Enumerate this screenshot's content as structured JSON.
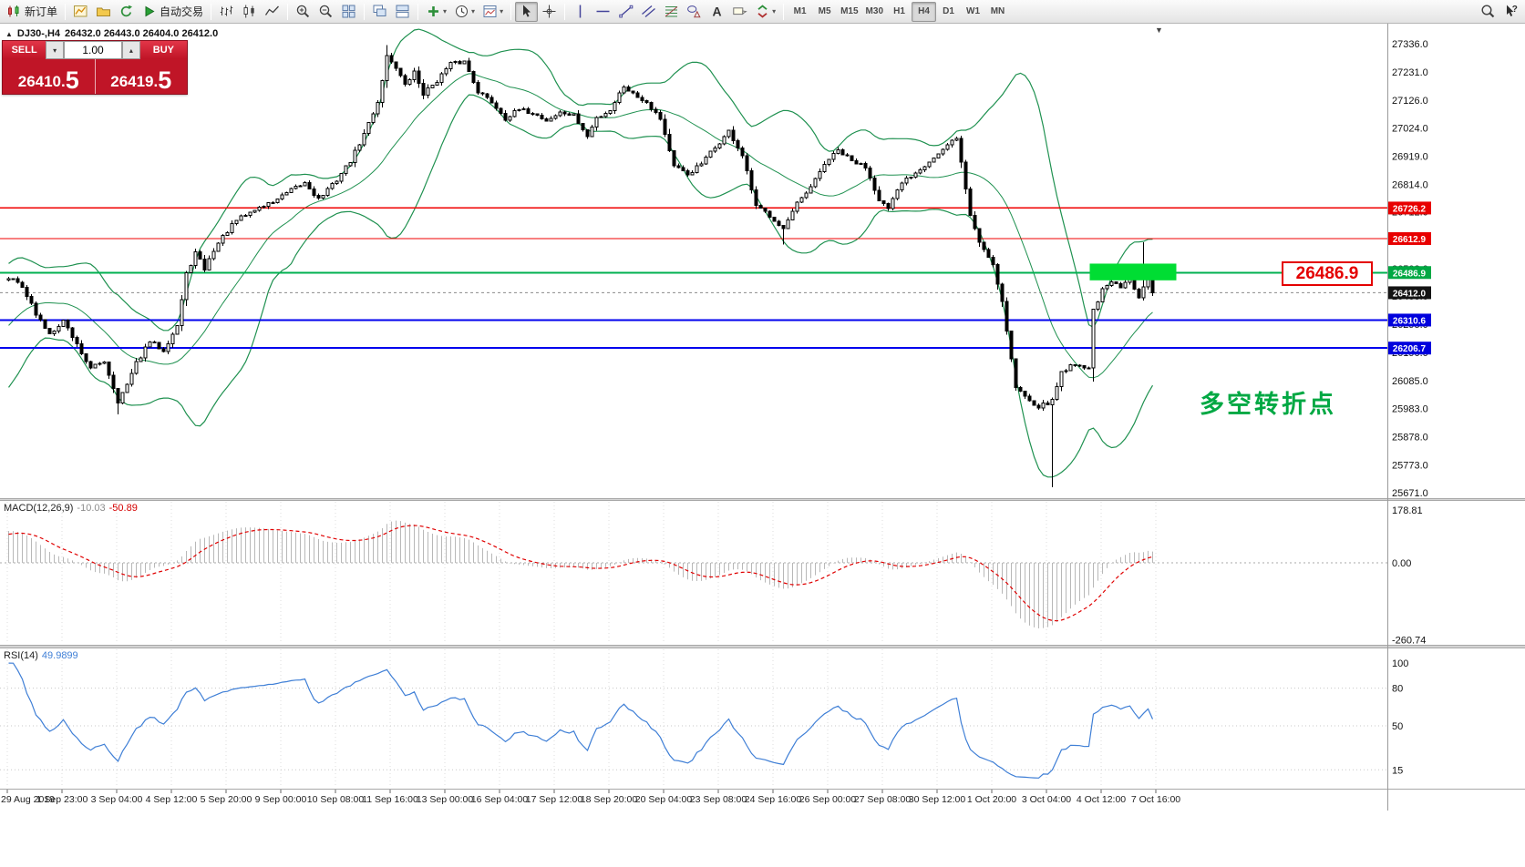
{
  "icons": {
    "symbol_marker": "▲",
    "shift_marker": "▼",
    "caret_down": "▾",
    "spinner_up": "▴",
    "spinner_down": "▾"
  },
  "toolbar": {
    "groups": [
      {
        "buttons": [
          {
            "name": "new-order",
            "icon": "neworder",
            "label": "新订单"
          }
        ]
      },
      {
        "buttons": [
          {
            "name": "new-chart",
            "icon": "newchart"
          },
          {
            "name": "profiles",
            "icon": "profiles"
          },
          {
            "name": "refresh",
            "icon": "refresh"
          },
          {
            "name": "auto-trading",
            "icon": "autotrading",
            "label": "自动交易"
          }
        ]
      },
      {
        "buttons": [
          {
            "name": "bar-chart",
            "icon": "bars"
          },
          {
            "name": "candle-chart",
            "icon": "candles"
          },
          {
            "name": "line-chart",
            "icon": "linechart"
          }
        ]
      },
      {
        "buttons": [
          {
            "name": "zoom-in",
            "icon": "zoomin"
          },
          {
            "name": "zoom-out",
            "icon": "zoomout"
          },
          {
            "name": "tile-windows",
            "icon": "tile"
          }
        ]
      },
      {
        "buttons": [
          {
            "name": "cascade-windows",
            "icon": "cascade"
          },
          {
            "name": "arrange-windows",
            "icon": "arrange"
          }
        ]
      },
      {
        "buttons": [
          {
            "name": "indicators",
            "icon": "indicators",
            "dropdown": true
          },
          {
            "name": "periods",
            "icon": "clock",
            "dropdown": true
          },
          {
            "name": "templates",
            "icon": "template",
            "dropdown": true
          }
        ]
      },
      {
        "buttons": [
          {
            "name": "cursor",
            "icon": "cursor",
            "active": true
          },
          {
            "name": "crosshair",
            "icon": "crosshair"
          }
        ]
      },
      {
        "buttons": [
          {
            "name": "vertical-line",
            "icon": "vline"
          },
          {
            "name": "horizontal-line",
            "icon": "hline"
          },
          {
            "name": "trendline",
            "icon": "trend"
          },
          {
            "name": "equidistant-channel",
            "icon": "channel"
          },
          {
            "name": "fibonacci-retracement",
            "icon": "fib"
          },
          {
            "name": "shapes",
            "icon": "shapes"
          },
          {
            "name": "text",
            "icon": "texttool"
          },
          {
            "name": "text-label",
            "icon": "label"
          },
          {
            "name": "arrow-objects",
            "icon": "arrows",
            "dropdown": true
          }
        ]
      },
      {
        "type": "timeframes",
        "buttons": [
          {
            "name": "timeframe-m1",
            "label": "M1"
          },
          {
            "name": "timeframe-m5",
            "label": "M5"
          },
          {
            "name": "timeframe-m15",
            "label": "M15"
          },
          {
            "name": "timeframe-m30",
            "label": "M30"
          },
          {
            "name": "timeframe-h1",
            "label": "H1"
          },
          {
            "name": "timeframe-h4",
            "label": "H4",
            "active": true
          },
          {
            "name": "timeframe-d1",
            "label": "D1"
          },
          {
            "name": "timeframe-w1",
            "label": "W1"
          },
          {
            "name": "timeframe-mn",
            "label": "MN"
          }
        ]
      }
    ],
    "right_buttons": [
      {
        "name": "search",
        "icon": "search"
      },
      {
        "name": "context-help",
        "icon": "help"
      }
    ]
  },
  "symbol_header": {
    "symbol": "DJ30-,H4",
    "ohlc": "26432.0 26443.0 26404.0 26412.0"
  },
  "trade_panel": {
    "sell_label": "SELL",
    "buy_label": "BUY",
    "lot_size": "1.00",
    "sell_price_main": "26410.",
    "sell_price_big": "5",
    "buy_price_main": "26419.",
    "buy_price_big": "5"
  },
  "annotations": {
    "big_price_label": "26486.9",
    "note_text": "多空转折点"
  },
  "macd": {
    "header": "MACD(12,26,9)",
    "value_main": "-10.03",
    "value_signal": "-50.89",
    "scale_labels": [
      "178.81",
      "0.00",
      "-260.74"
    ]
  },
  "rsi": {
    "header": "RSI(14)",
    "value": "49.9899",
    "scale_labels": [
      "100",
      "80",
      "50",
      "15"
    ]
  },
  "price_axis": {
    "ticks": [
      "27336.0",
      "27231.0",
      "27126.0",
      "27024.0",
      "26919.0",
      "26814.0",
      "26712.0",
      "26607.0",
      "26502.0",
      "26400.0",
      "26295.0",
      "26190.0",
      "26085.0",
      "25983.0",
      "25878.0",
      "25773.0",
      "25671.0"
    ],
    "badges": [
      {
        "text": "26726.2",
        "color": "#e80000"
      },
      {
        "text": "26612.9",
        "color": "#e80000"
      },
      {
        "text": "26486.9",
        "color": "#00a843"
      },
      {
        "text": "26412.0",
        "color": "#141414"
      },
      {
        "text": "26310.6",
        "color": "#0000dd"
      },
      {
        "text": "26206.7",
        "color": "#0000dd"
      }
    ]
  },
  "time_axis": {
    "labels": [
      "29 Aug 2019",
      "1 Sep 23:00",
      "3 Sep 04:00",
      "4 Sep 12:00",
      "5 Sep 20:00",
      "9 Sep 00:00",
      "10 Sep 08:00",
      "11 Sep 16:00",
      "13 Sep 00:00",
      "16 Sep 04:00",
      "17 Sep 12:00",
      "18 Sep 20:00",
      "20 Sep 04:00",
      "23 Sep 08:00",
      "24 Sep 16:00",
      "26 Sep 00:00",
      "27 Sep 08:00",
      "30 Sep 12:00",
      "1 Oct 20:00",
      "3 Oct 04:00",
      "4 Oct 12:00",
      "7 Oct 16:00"
    ]
  },
  "chart_data": {
    "type": "candlestick",
    "symbol": "DJ30-",
    "timeframe": "H4",
    "ohlc_current": {
      "open": 26432.0,
      "high": 26443.0,
      "low": 26404.0,
      "close": 26412.0
    },
    "current_price": 26412.0,
    "price_range": [
      25650,
      27410
    ],
    "candle_count": 252,
    "close_anchors": [
      [
        0,
        26470
      ],
      [
        3,
        26440
      ],
      [
        6,
        26330
      ],
      [
        9,
        26260
      ],
      [
        12,
        26310
      ],
      [
        15,
        26220
      ],
      [
        18,
        26130
      ],
      [
        21,
        26160
      ],
      [
        24,
        26010
      ],
      [
        26,
        26070
      ],
      [
        28,
        26150
      ],
      [
        31,
        26230
      ],
      [
        34,
        26200
      ],
      [
        37,
        26290
      ],
      [
        39,
        26480
      ],
      [
        41,
        26560
      ],
      [
        43,
        26500
      ],
      [
        45,
        26570
      ],
      [
        47,
        26620
      ],
      [
        50,
        26680
      ],
      [
        54,
        26720
      ],
      [
        58,
        26750
      ],
      [
        62,
        26790
      ],
      [
        65,
        26820
      ],
      [
        68,
        26760
      ],
      [
        71,
        26810
      ],
      [
        75,
        26900
      ],
      [
        78,
        27000
      ],
      [
        81,
        27120
      ],
      [
        83,
        27290
      ],
      [
        85,
        27250
      ],
      [
        87,
        27180
      ],
      [
        89,
        27230
      ],
      [
        91,
        27150
      ],
      [
        94,
        27200
      ],
      [
        97,
        27260
      ],
      [
        100,
        27270
      ],
      [
        103,
        27160
      ],
      [
        106,
        27120
      ],
      [
        109,
        27060
      ],
      [
        112,
        27090
      ],
      [
        115,
        27080
      ],
      [
        118,
        27050
      ],
      [
        121,
        27080
      ],
      [
        124,
        27070
      ],
      [
        127,
        26990
      ],
      [
        129,
        27060
      ],
      [
        132,
        27090
      ],
      [
        135,
        27180
      ],
      [
        137,
        27150
      ],
      [
        140,
        27120
      ],
      [
        143,
        27060
      ],
      [
        146,
        26880
      ],
      [
        149,
        26850
      ],
      [
        152,
        26890
      ],
      [
        155,
        26950
      ],
      [
        158,
        27010
      ],
      [
        161,
        26920
      ],
      [
        164,
        26730
      ],
      [
        167,
        26700
      ],
      [
        170,
        26650
      ],
      [
        173,
        26740
      ],
      [
        176,
        26800
      ],
      [
        179,
        26890
      ],
      [
        182,
        26940
      ],
      [
        185,
        26900
      ],
      [
        188,
        26880
      ],
      [
        191,
        26760
      ],
      [
        193,
        26720
      ],
      [
        196,
        26820
      ],
      [
        199,
        26860
      ],
      [
        202,
        26900
      ],
      [
        205,
        26940
      ],
      [
        208,
        26990
      ],
      [
        211,
        26700
      ],
      [
        213,
        26600
      ],
      [
        216,
        26520
      ],
      [
        218,
        26380
      ],
      [
        221,
        26060
      ],
      [
        223,
        26030
      ],
      [
        226,
        25990
      ],
      [
        229,
        26010
      ],
      [
        231,
        26120
      ],
      [
        234,
        26150
      ],
      [
        237,
        26130
      ],
      [
        238,
        26350
      ],
      [
        240,
        26420
      ],
      [
        242,
        26450
      ],
      [
        244,
        26430
      ],
      [
        246,
        26460
      ],
      [
        248,
        26400
      ],
      [
        250,
        26480
      ],
      [
        251,
        26412
      ]
    ],
    "wick_overrides": [
      {
        "i": 24,
        "low": 25960
      },
      {
        "i": 83,
        "high": 27330
      },
      {
        "i": 170,
        "low": 26590
      },
      {
        "i": 229,
        "low": 25690
      },
      {
        "i": 249,
        "high": 26600
      }
    ],
    "levels": [
      {
        "price": 26726.2,
        "color": "#f00000",
        "width": 1.4
      },
      {
        "price": 26612.9,
        "color": "#f00000",
        "width": 1.4
      },
      {
        "price": 26486.9,
        "color": "#00b050",
        "width": 2
      },
      {
        "price": 26310.6,
        "color": "#0000ee",
        "width": 2
      },
      {
        "price": 26206.7,
        "color": "#0000ee",
        "width": 2
      }
    ],
    "highlight_rect": {
      "i_start": 237.5,
      "i_end": 256.5,
      "price_top": 26520,
      "price_bottom": 26458,
      "color": "#00dd33"
    },
    "indicators": {
      "bollinger": {
        "period": 20,
        "deviation": 2,
        "color": "#1f9150"
      },
      "macd": {
        "fast": 12,
        "slow": 26,
        "signal": 9
      },
      "rsi": {
        "period": 14
      }
    }
  }
}
